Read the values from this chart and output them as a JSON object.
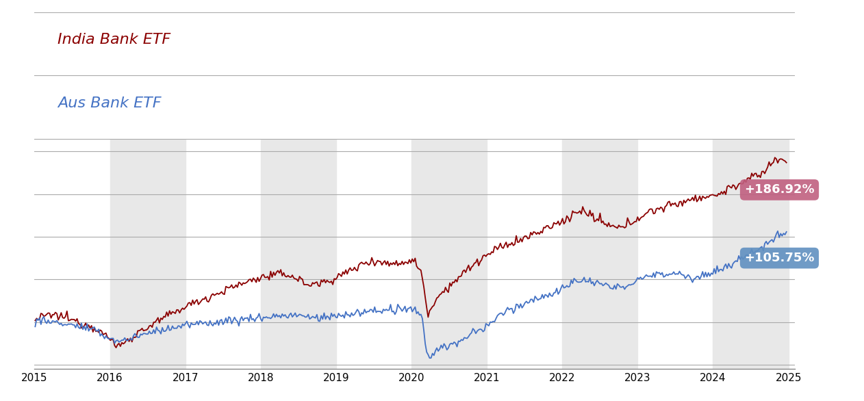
{
  "india_label": "India Bank ETF",
  "aus_label": "Aus Bank ETF",
  "india_color": "#8b0000",
  "aus_color": "#4472c4",
  "india_final_label": "+186.92%",
  "aus_final_label": "+105.75%",
  "india_label_bg": "#c06080",
  "aus_label_bg": "#6090c0",
  "background_color": "#ffffff",
  "band_color": "#e8e8e8",
  "grid_color": "#aaaaaa",
  "ylim": [
    -55,
    215
  ],
  "label_fontsize": 16,
  "tick_fontsize": 11,
  "shaded_years": [
    2016,
    2018,
    2020,
    2022,
    2024
  ]
}
